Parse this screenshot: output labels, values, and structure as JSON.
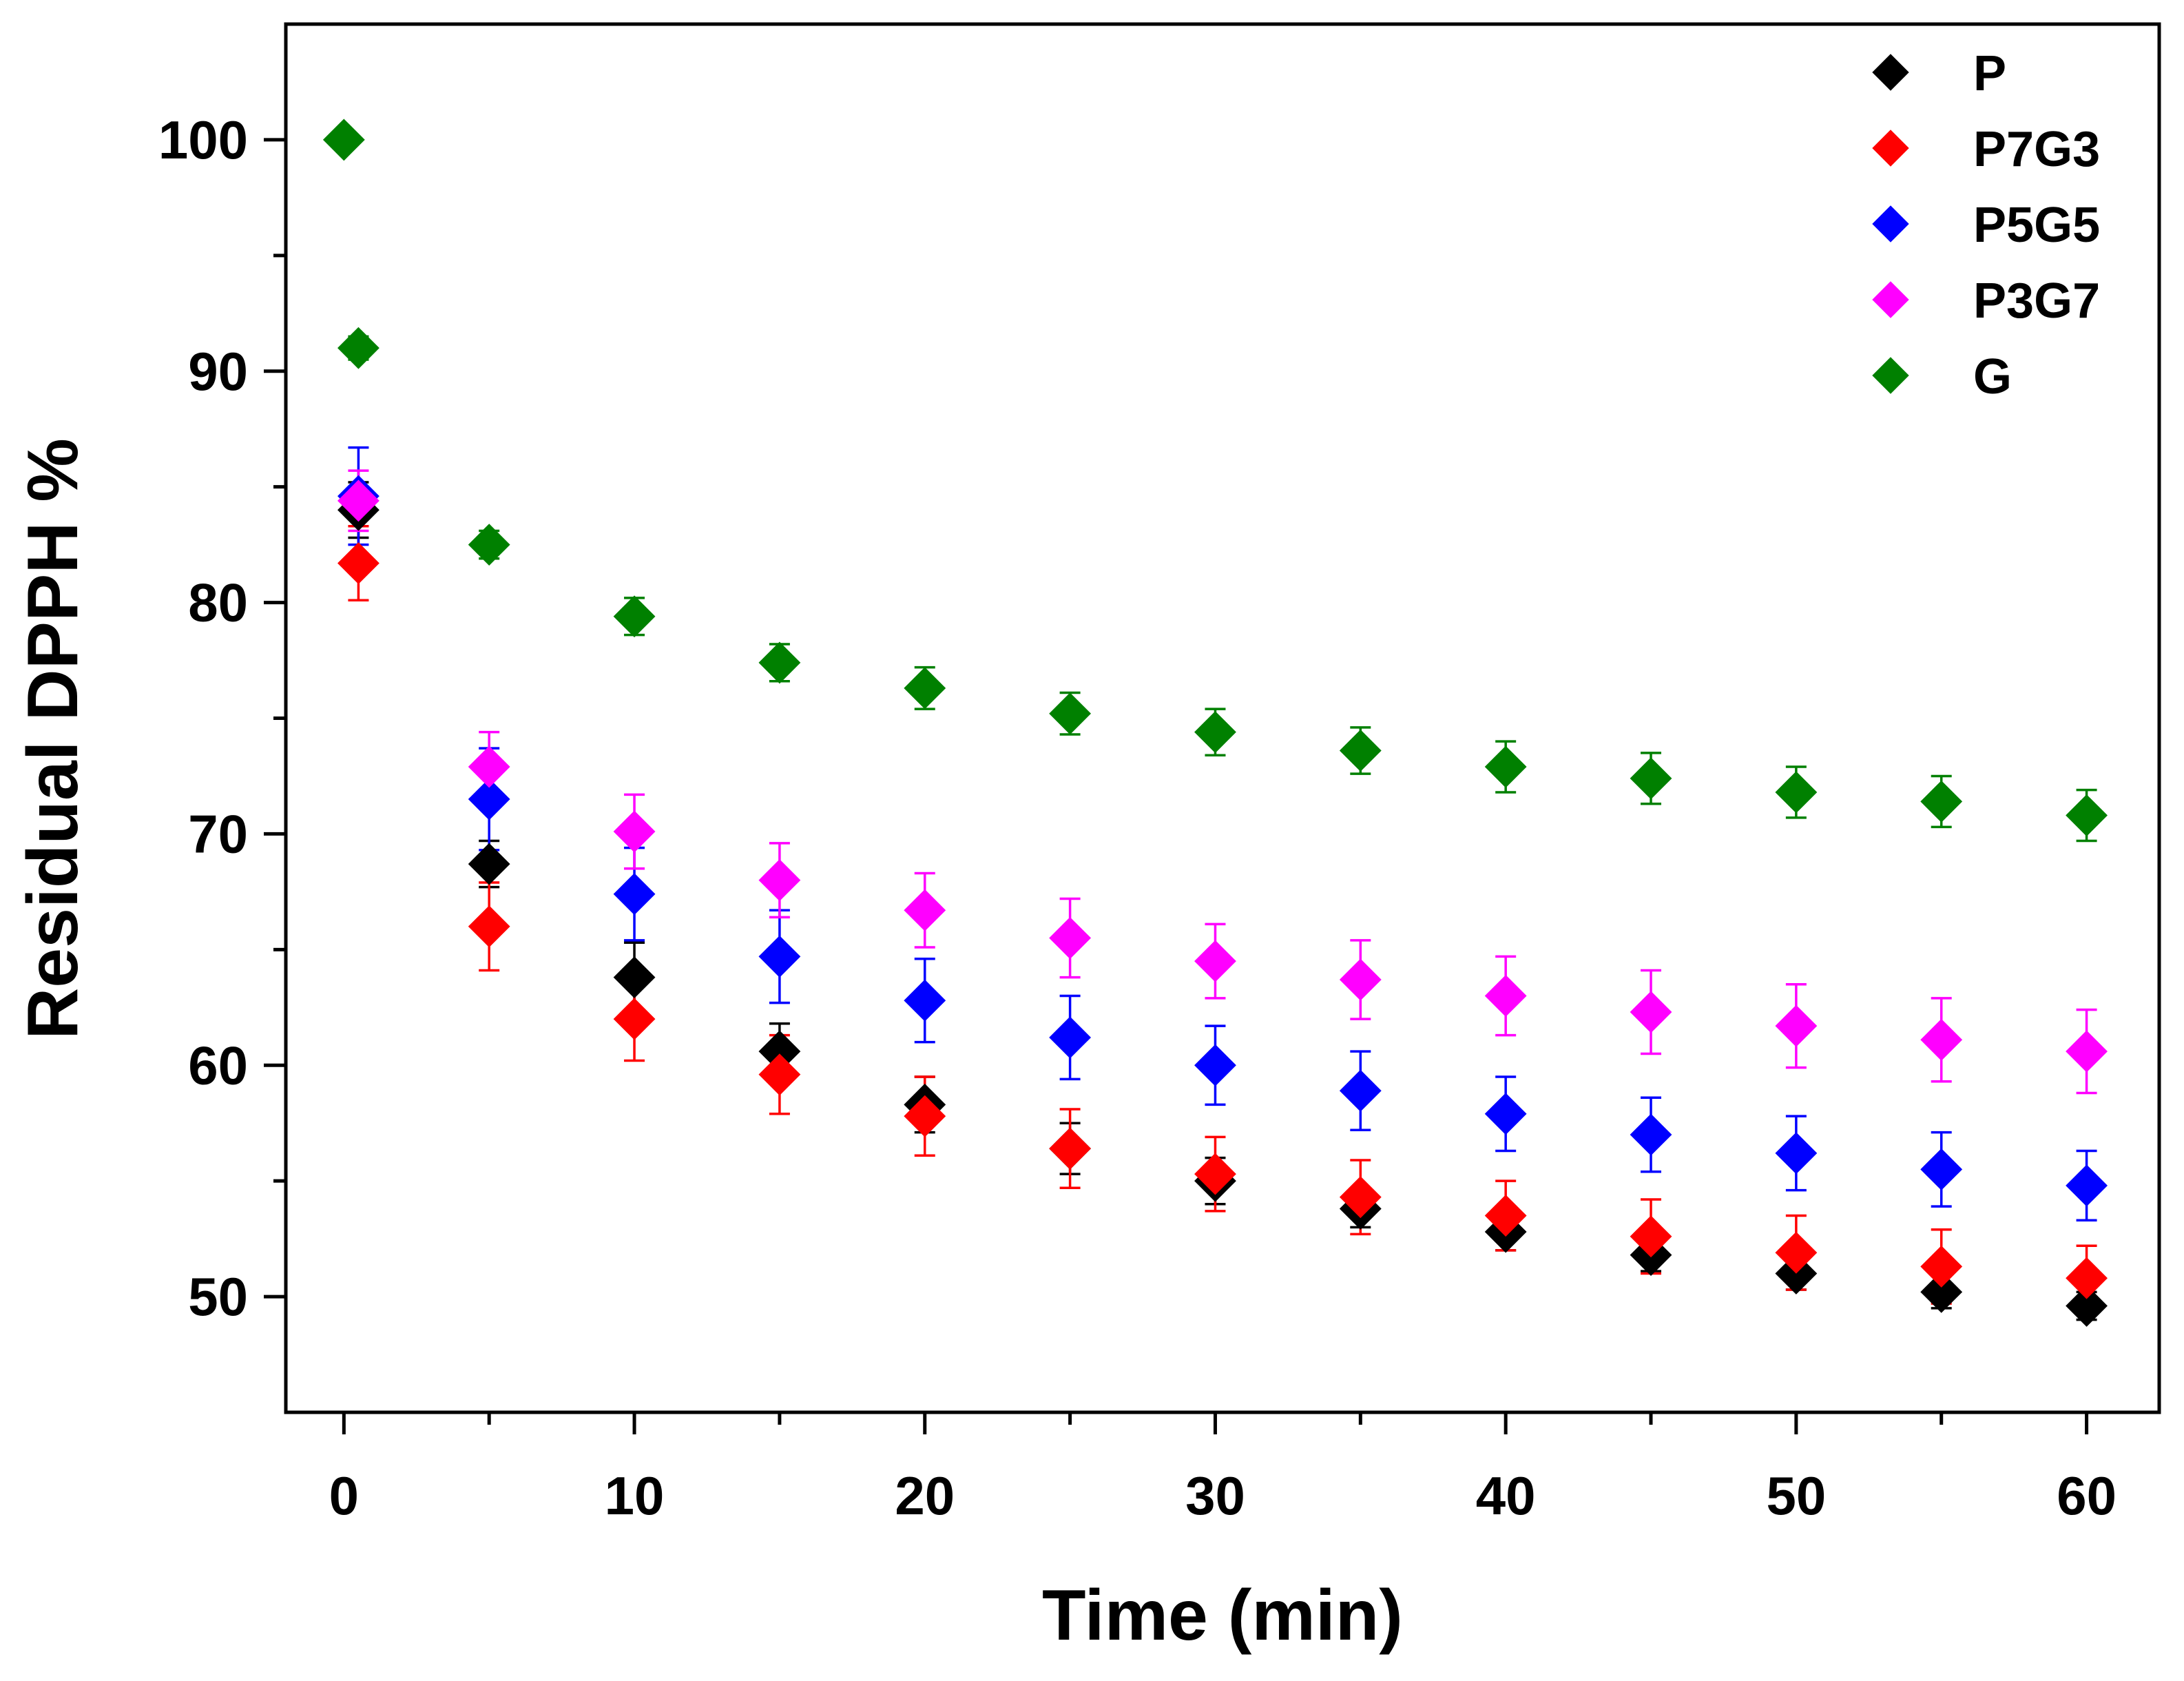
{
  "chart_data": {
    "type": "scatter",
    "title": "",
    "xlabel": "Time (min)",
    "ylabel": "Residual DPPH %",
    "xlim": [
      -2,
      62.5
    ],
    "ylim": [
      45,
      105
    ],
    "xticks": [
      0,
      10,
      20,
      30,
      40,
      50,
      60
    ],
    "yticks": [
      50,
      60,
      70,
      80,
      90,
      100
    ],
    "x_minor_ticks": [
      5,
      15,
      25,
      35,
      45,
      55
    ],
    "y_minor_ticks": [
      55,
      65,
      75,
      85,
      95
    ],
    "legend_position": "top-right",
    "marker": "diamond",
    "series": [
      {
        "name": "P",
        "color": "#000000",
        "x": [
          0.5,
          5,
          10,
          15,
          20,
          25,
          30,
          35,
          40,
          45,
          50,
          55,
          60
        ],
        "y": [
          84.0,
          68.7,
          63.8,
          60.6,
          58.3,
          56.4,
          55.0,
          53.8,
          52.8,
          51.8,
          51.0,
          50.2,
          49.6
        ],
        "err": [
          1.2,
          1.0,
          1.5,
          1.2,
          1.2,
          1.1,
          1.0,
          0.8,
          0.8,
          0.7,
          0.7,
          0.7,
          0.6
        ]
      },
      {
        "name": "P7G3",
        "color": "#ff0000",
        "x": [
          0.5,
          5,
          10,
          15,
          20,
          25,
          30,
          35,
          40,
          45,
          50,
          55,
          60
        ],
        "y": [
          81.7,
          66.0,
          62.0,
          59.6,
          57.8,
          56.4,
          55.3,
          54.3,
          53.5,
          52.6,
          51.9,
          51.3,
          50.8
        ],
        "err": [
          1.6,
          1.9,
          1.8,
          1.7,
          1.7,
          1.7,
          1.6,
          1.6,
          1.5,
          1.6,
          1.6,
          1.6,
          1.4
        ]
      },
      {
        "name": "P5G5",
        "color": "#0000ff",
        "x": [
          0.5,
          5,
          10,
          15,
          20,
          25,
          30,
          35,
          40,
          45,
          50,
          55,
          60
        ],
        "y": [
          84.6,
          71.5,
          67.4,
          64.7,
          62.8,
          61.2,
          60.0,
          58.9,
          57.9,
          57.0,
          56.2,
          55.5,
          54.8
        ],
        "err": [
          2.1,
          2.2,
          2.0,
          2.0,
          1.8,
          1.8,
          1.7,
          1.7,
          1.6,
          1.6,
          1.6,
          1.6,
          1.5
        ]
      },
      {
        "name": "P3G7",
        "color": "#ff00ff",
        "x": [
          0.5,
          5,
          10,
          15,
          20,
          25,
          30,
          35,
          40,
          45,
          50,
          55,
          60
        ],
        "y": [
          84.4,
          72.9,
          70.1,
          68.0,
          66.7,
          65.5,
          64.5,
          63.7,
          63.0,
          62.3,
          61.7,
          61.1,
          60.6
        ],
        "err": [
          1.3,
          1.5,
          1.6,
          1.6,
          1.6,
          1.7,
          1.6,
          1.7,
          1.7,
          1.8,
          1.8,
          1.8,
          1.8
        ]
      },
      {
        "name": "G",
        "color": "#008000",
        "x": [
          0,
          0.5,
          5,
          10,
          15,
          20,
          25,
          30,
          35,
          40,
          45,
          50,
          55,
          60
        ],
        "y": [
          100.0,
          91.0,
          82.5,
          79.4,
          77.4,
          76.3,
          75.2,
          74.4,
          73.6,
          72.9,
          72.4,
          71.8,
          71.4,
          70.8
        ],
        "err": [
          0.0,
          0.5,
          0.6,
          0.8,
          0.8,
          0.9,
          0.9,
          1.0,
          1.0,
          1.1,
          1.1,
          1.1,
          1.1,
          1.1
        ]
      }
    ]
  }
}
